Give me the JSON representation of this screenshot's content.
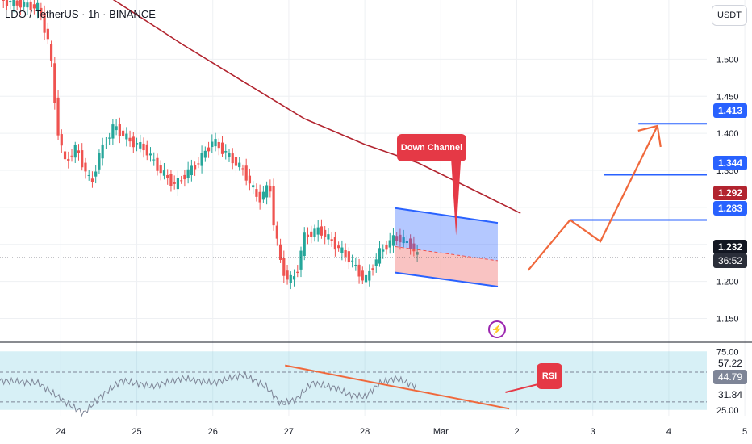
{
  "symbol_line": "LDO / TetherUS · 1h · BINANCE",
  "currency": "USDT",
  "colors": {
    "up": "#26a69a",
    "down": "#ef5350",
    "ma": "#b2242f",
    "blue_line": "#2962ff",
    "channel_top": "rgba(41,98,255,0.35)",
    "channel_bottom": "rgba(239,83,80,0.35)",
    "arrow": "#f0683b",
    "rsi_line": "#7e8597",
    "rsi_band": "rgba(96,196,218,0.25)",
    "callout": "#e53946"
  },
  "annotations": {
    "down_channel_label": "Down Channel",
    "rsi_label": "RSI"
  },
  "tags": {
    "p1413": "1.413",
    "p1344": "1.344",
    "p1292": "1.292",
    "p1283": "1.283",
    "p1232": "1.232",
    "countdown": "36:52",
    "rsi_5722": "57.22",
    "rsi_4479": "44.79",
    "rsi_3184": "31.84"
  },
  "chart_data": [
    {
      "type": "candlestick",
      "title": "LDO / TetherUS · 1h · BINANCE",
      "y_ticks": [
        "1.500",
        "1.450",
        "1.400",
        "1.350",
        "1.300",
        "1.250",
        "1.200",
        "1.150"
      ],
      "x_ticks": [
        "24",
        "25",
        "26",
        "27",
        "28",
        "Mar",
        "2",
        "3",
        "4",
        "5"
      ],
      "ylim": [
        1.12,
        1.58
      ],
      "last_price": 1.232,
      "levels": [
        1.413,
        1.344,
        1.283
      ],
      "ma_value": 1.292,
      "series": [
        {
          "x": 0,
          "y": 1.58
        },
        {
          "x": 0.5,
          "y": 1.57
        },
        {
          "x": 0.65,
          "y": 1.52
        },
        {
          "x": 0.75,
          "y": 1.41
        },
        {
          "x": 0.85,
          "y": 1.36
        },
        {
          "x": 1.0,
          "y": 1.38
        },
        {
          "x": 1.2,
          "y": 1.33
        },
        {
          "x": 1.3,
          "y": 1.37
        },
        {
          "x": 1.5,
          "y": 1.41
        },
        {
          "x": 1.7,
          "y": 1.39
        },
        {
          "x": 1.9,
          "y": 1.38
        },
        {
          "x": 2.1,
          "y": 1.35
        },
        {
          "x": 2.3,
          "y": 1.33
        },
        {
          "x": 2.6,
          "y": 1.36
        },
        {
          "x": 2.8,
          "y": 1.39
        },
        {
          "x": 3.0,
          "y": 1.37
        },
        {
          "x": 3.2,
          "y": 1.35
        },
        {
          "x": 3.4,
          "y": 1.31
        },
        {
          "x": 3.55,
          "y": 1.33
        },
        {
          "x": 3.6,
          "y": 1.28
        },
        {
          "x": 3.7,
          "y": 1.22
        },
        {
          "x": 3.8,
          "y": 1.2
        },
        {
          "x": 3.9,
          "y": 1.21
        },
        {
          "x": 4.0,
          "y": 1.26
        },
        {
          "x": 4.2,
          "y": 1.27
        },
        {
          "x": 4.4,
          "y": 1.25
        },
        {
          "x": 4.6,
          "y": 1.23
        },
        {
          "x": 4.8,
          "y": 1.2
        },
        {
          "x": 5.0,
          "y": 1.24
        },
        {
          "x": 5.2,
          "y": 1.26
        },
        {
          "x": 5.4,
          "y": 1.25
        },
        {
          "x": 5.5,
          "y": 1.232
        }
      ]
    },
    {
      "type": "line",
      "title": "RSI",
      "y_ticks": [
        "75.00",
        "57.22",
        "44.79",
        "31.84",
        "25.00"
      ],
      "ylim": [
        20,
        80
      ],
      "series": [
        {
          "x": 0,
          "y": 50
        },
        {
          "x": 0.5,
          "y": 48
        },
        {
          "x": 0.9,
          "y": 30
        },
        {
          "x": 1.1,
          "y": 22
        },
        {
          "x": 1.3,
          "y": 35
        },
        {
          "x": 1.6,
          "y": 50
        },
        {
          "x": 2.0,
          "y": 45
        },
        {
          "x": 2.4,
          "y": 52
        },
        {
          "x": 2.8,
          "y": 48
        },
        {
          "x": 3.2,
          "y": 55
        },
        {
          "x": 3.5,
          "y": 45
        },
        {
          "x": 3.7,
          "y": 30
        },
        {
          "x": 3.9,
          "y": 34
        },
        {
          "x": 4.1,
          "y": 48
        },
        {
          "x": 4.4,
          "y": 44
        },
        {
          "x": 4.6,
          "y": 38
        },
        {
          "x": 4.8,
          "y": 36
        },
        {
          "x": 5.0,
          "y": 48
        },
        {
          "x": 5.2,
          "y": 52
        },
        {
          "x": 5.4,
          "y": 47
        },
        {
          "x": 5.5,
          "y": 44.79
        }
      ]
    }
  ]
}
